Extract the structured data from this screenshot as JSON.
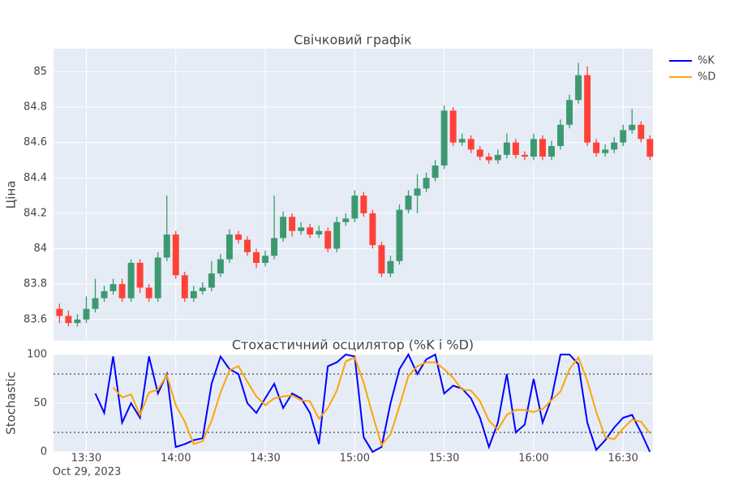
{
  "chart_data": [
    {
      "type": "candlestick",
      "title": "Свічковий графік",
      "y_label": "Ціна",
      "increasing_color": "#3d9970",
      "decreasing_color": "#ff4136",
      "x": [
        "2023-10-29 13:21",
        "2023-10-29 13:24",
        "2023-10-29 13:27",
        "2023-10-29 13:30",
        "2023-10-29 13:33",
        "2023-10-29 13:36",
        "2023-10-29 13:39",
        "2023-10-29 13:42",
        "2023-10-29 13:45",
        "2023-10-29 13:48",
        "2023-10-29 13:51",
        "2023-10-29 13:54",
        "2023-10-29 13:57",
        "2023-10-29 14:00",
        "2023-10-29 14:03",
        "2023-10-29 14:06",
        "2023-10-29 14:09",
        "2023-10-29 14:12",
        "2023-10-29 14:15",
        "2023-10-29 14:18",
        "2023-10-29 14:21",
        "2023-10-29 14:24",
        "2023-10-29 14:27",
        "2023-10-29 14:30",
        "2023-10-29 14:33",
        "2023-10-29 14:36",
        "2023-10-29 14:39",
        "2023-10-29 14:42",
        "2023-10-29 14:45",
        "2023-10-29 14:48",
        "2023-10-29 14:51",
        "2023-10-29 14:54",
        "2023-10-29 14:57",
        "2023-10-29 15:00",
        "2023-10-29 15:03",
        "2023-10-29 15:06",
        "2023-10-29 15:09",
        "2023-10-29 15:12",
        "2023-10-29 15:15",
        "2023-10-29 15:18",
        "2023-10-29 15:21",
        "2023-10-29 15:24",
        "2023-10-29 15:27",
        "2023-10-29 15:30",
        "2023-10-29 15:33",
        "2023-10-29 15:36",
        "2023-10-29 15:39",
        "2023-10-29 15:42",
        "2023-10-29 15:45",
        "2023-10-29 15:48",
        "2023-10-29 15:51",
        "2023-10-29 15:54",
        "2023-10-29 15:57",
        "2023-10-29 16:00",
        "2023-10-29 16:03",
        "2023-10-29 16:06",
        "2023-10-29 16:09",
        "2023-10-29 16:12",
        "2023-10-29 16:15",
        "2023-10-29 16:18",
        "2023-10-29 16:21",
        "2023-10-29 16:24",
        "2023-10-29 16:27",
        "2023-10-29 16:30",
        "2023-10-29 16:33",
        "2023-10-29 16:36",
        "2023-10-29 16:39"
      ],
      "open": [
        83.66,
        83.62,
        83.58,
        83.6,
        83.66,
        83.72,
        83.76,
        83.8,
        83.72,
        83.92,
        83.78,
        83.72,
        83.95,
        84.08,
        83.85,
        83.72,
        83.76,
        83.78,
        83.86,
        83.94,
        84.08,
        84.05,
        83.98,
        83.92,
        83.96,
        84.06,
        84.18,
        84.1,
        84.12,
        84.08,
        84.1,
        84.0,
        84.15,
        84.17,
        84.3,
        84.2,
        84.02,
        83.86,
        83.93,
        84.22,
        84.3,
        84.34,
        84.4,
        84.47,
        84.78,
        84.6,
        84.62,
        84.56,
        84.52,
        84.5,
        84.53,
        84.6,
        84.53,
        84.52,
        84.62,
        84.52,
        84.58,
        84.7,
        84.84,
        84.98,
        84.6,
        84.54,
        84.56,
        84.6,
        84.67,
        84.7,
        84.62
      ],
      "high": [
        83.69,
        83.65,
        83.63,
        83.73,
        83.83,
        83.79,
        83.83,
        83.83,
        83.94,
        83.94,
        83.8,
        83.98,
        84.3,
        84.1,
        83.87,
        83.79,
        83.81,
        83.93,
        83.97,
        84.11,
        84.1,
        84.07,
        84.0,
        83.99,
        84.3,
        84.21,
        84.2,
        84.15,
        84.14,
        84.13,
        84.12,
        84.18,
        84.2,
        84.33,
        84.32,
        84.22,
        84.04,
        83.96,
        84.25,
        84.33,
        84.42,
        84.43,
        84.5,
        84.81,
        84.8,
        84.65,
        84.64,
        84.58,
        84.54,
        84.56,
        84.65,
        84.62,
        84.55,
        84.65,
        84.64,
        84.61,
        84.73,
        84.87,
        85.05,
        85.03,
        84.62,
        84.59,
        84.63,
        84.7,
        84.79,
        84.72,
        84.64
      ],
      "low": [
        83.58,
        83.56,
        83.56,
        83.58,
        83.64,
        83.7,
        83.74,
        83.7,
        83.7,
        83.75,
        83.7,
        83.7,
        83.93,
        83.83,
        83.7,
        83.7,
        83.74,
        83.76,
        83.84,
        83.92,
        84.03,
        83.96,
        83.89,
        83.9,
        83.94,
        84.04,
        84.07,
        84.08,
        84.06,
        84.06,
        83.98,
        83.98,
        84.13,
        84.15,
        84.18,
        84.0,
        83.84,
        83.84,
        83.91,
        84.2,
        84.2,
        84.32,
        84.38,
        84.45,
        84.58,
        84.58,
        84.54,
        84.5,
        84.48,
        84.48,
        84.51,
        84.51,
        84.5,
        84.5,
        84.5,
        84.5,
        84.56,
        84.68,
        84.82,
        84.58,
        84.52,
        84.52,
        84.54,
        84.58,
        84.65,
        84.6,
        84.5
      ],
      "close": [
        83.62,
        83.58,
        83.6,
        83.66,
        83.72,
        83.76,
        83.8,
        83.72,
        83.92,
        83.78,
        83.72,
        83.95,
        84.08,
        83.85,
        83.72,
        83.76,
        83.78,
        83.86,
        83.94,
        84.08,
        84.05,
        83.98,
        83.92,
        83.96,
        84.06,
        84.18,
        84.1,
        84.12,
        84.08,
        84.1,
        84.0,
        84.15,
        84.17,
        84.3,
        84.2,
        84.02,
        83.86,
        83.93,
        84.22,
        84.3,
        84.34,
        84.4,
        84.47,
        84.78,
        84.6,
        84.62,
        84.56,
        84.52,
        84.5,
        84.53,
        84.6,
        84.53,
        84.52,
        84.62,
        84.52,
        84.58,
        84.7,
        84.84,
        84.98,
        84.6,
        84.54,
        84.56,
        84.6,
        84.67,
        84.7,
        84.62,
        84.52
      ],
      "xlim": [
        "2023-10-29 13:19",
        "2023-10-29 16:40"
      ],
      "ylim": [
        83.48,
        85.13
      ],
      "yticks": [
        83.6,
        83.8,
        84,
        84.2,
        84.4,
        84.6,
        84.8,
        85
      ],
      "grid": true
    },
    {
      "type": "line",
      "title": "Стохастичний осцилятор (%K і %D)",
      "y_label": "Stochastic",
      "x": [
        "2023-10-29 13:21",
        "2023-10-29 13:24",
        "2023-10-29 13:27",
        "2023-10-29 13:30",
        "2023-10-29 13:33",
        "2023-10-29 13:36",
        "2023-10-29 13:39",
        "2023-10-29 13:42",
        "2023-10-29 13:45",
        "2023-10-29 13:48",
        "2023-10-29 13:51",
        "2023-10-29 13:54",
        "2023-10-29 13:57",
        "2023-10-29 14:00",
        "2023-10-29 14:03",
        "2023-10-29 14:06",
        "2023-10-29 14:09",
        "2023-10-29 14:12",
        "2023-10-29 14:15",
        "2023-10-29 14:18",
        "2023-10-29 14:21",
        "2023-10-29 14:24",
        "2023-10-29 14:27",
        "2023-10-29 14:30",
        "2023-10-29 14:33",
        "2023-10-29 14:36",
        "2023-10-29 14:39",
        "2023-10-29 14:42",
        "2023-10-29 14:45",
        "2023-10-29 14:48",
        "2023-10-29 14:51",
        "2023-10-29 14:54",
        "2023-10-29 14:57",
        "2023-10-29 15:00",
        "2023-10-29 15:03",
        "2023-10-29 15:06",
        "2023-10-29 15:09",
        "2023-10-29 15:12",
        "2023-10-29 15:15",
        "2023-10-29 15:18",
        "2023-10-29 15:21",
        "2023-10-29 15:24",
        "2023-10-29 15:27",
        "2023-10-29 15:30",
        "2023-10-29 15:33",
        "2023-10-29 15:36",
        "2023-10-29 15:39",
        "2023-10-29 15:42",
        "2023-10-29 15:45",
        "2023-10-29 15:48",
        "2023-10-29 15:51",
        "2023-10-29 15:54",
        "2023-10-29 15:57",
        "2023-10-29 16:00",
        "2023-10-29 16:03",
        "2023-10-29 16:06",
        "2023-10-29 16:09",
        "2023-10-29 16:12",
        "2023-10-29 16:15",
        "2023-10-29 16:18",
        "2023-10-29 16:21",
        "2023-10-29 16:24",
        "2023-10-29 16:27",
        "2023-10-29 16:30",
        "2023-10-29 16:33",
        "2023-10-29 16:36",
        "2023-10-29 16:39"
      ],
      "series": [
        {
          "name": "%K",
          "color": "#0000ff",
          "values": [
            null,
            null,
            null,
            null,
            60,
            40,
            98,
            30,
            50,
            35,
            98,
            60,
            80,
            5,
            8,
            12,
            14,
            70,
            98,
            85,
            80,
            50,
            40,
            55,
            70,
            45,
            60,
            55,
            40,
            8,
            88,
            92,
            100,
            98,
            15,
            0,
            5,
            50,
            85,
            100,
            80,
            95,
            100,
            60,
            68,
            65,
            55,
            35,
            5,
            30,
            80,
            20,
            28,
            75,
            30,
            55,
            100,
            100,
            90,
            30,
            2,
            12,
            25,
            35,
            38,
            20,
            0
          ]
        },
        {
          "name": "%D",
          "color": "#ffa500",
          "values": [
            null,
            null,
            null,
            null,
            null,
            null,
            66,
            56,
            59,
            38,
            61,
            64,
            79,
            48,
            31,
            8,
            11,
            32,
            61,
            84,
            88,
            72,
            57,
            48,
            55,
            57,
            58,
            53,
            52,
            34,
            45,
            63,
            93,
            97,
            71,
            38,
            7,
            18,
            47,
            78,
            88,
            92,
            92,
            85,
            76,
            64,
            63,
            52,
            32,
            23,
            38,
            43,
            43,
            41,
            44,
            53,
            62,
            85,
            97,
            73,
            41,
            15,
            13,
            24,
            33,
            31,
            19
          ]
        }
      ],
      "hlines": [
        80,
        20
      ],
      "xlim": [
        "2023-10-29 13:19",
        "2023-10-29 16:40"
      ],
      "xticks": [
        {
          "value": "2023-10-29 13:30",
          "label": "13:30"
        },
        {
          "value": "2023-10-29 14:00",
          "label": "14:00"
        },
        {
          "value": "2023-10-29 14:30",
          "label": "14:30"
        },
        {
          "value": "2023-10-29 15:00",
          "label": "15:00"
        },
        {
          "value": "2023-10-29 15:30",
          "label": "15:30"
        },
        {
          "value": "2023-10-29 16:00",
          "label": "16:00"
        },
        {
          "value": "2023-10-29 16:30",
          "label": "16:30"
        }
      ],
      "x_date_label": "Oct 29, 2023",
      "ylim": [
        0,
        100
      ],
      "yticks": [
        0,
        50,
        100
      ],
      "grid": true,
      "legend": "top-right"
    }
  ]
}
